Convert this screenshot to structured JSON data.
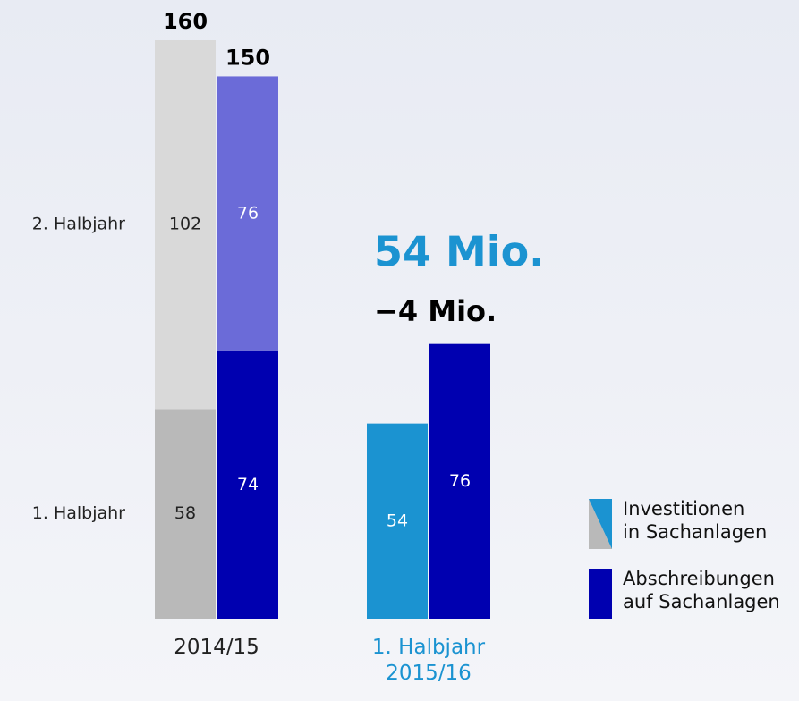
{
  "chart_data": {
    "type": "stacked-bar",
    "ylim": [
      0,
      160
    ],
    "stack_labels": [
      "1. Halbjahr",
      "2. Halbjahr"
    ],
    "groups": [
      {
        "label": "2014/15",
        "label_color": "#222222",
        "bars": [
          {
            "values": [
              58,
              102
            ],
            "colors": [
              "#b9b9b9",
              "#d9d9d9"
            ],
            "label_color": "#222222",
            "total": 160
          },
          {
            "values": [
              74,
              76
            ],
            "colors": [
              "#0000b0",
              "#6b6bd8"
            ],
            "label_color": "#ffffff",
            "total": 150
          }
        ]
      },
      {
        "label": "1. Halbjahr\n2015/16",
        "label_color": "#1b93d1",
        "bars": [
          {
            "values": [
              54
            ],
            "colors": [
              "#1b93d1"
            ],
            "label_color": "#ffffff"
          },
          {
            "values": [
              76
            ],
            "colors": [
              "#0000b0"
            ],
            "label_color": "#ffffff"
          }
        ]
      }
    ],
    "annotations": [
      {
        "text": "54 Mio.",
        "color": "#1b93d1"
      },
      {
        "text": "−4 Mio.",
        "color": "#000000"
      }
    ],
    "legend": [
      {
        "name": "Investitionen\nin Sachanlagen",
        "colors": [
          "#b9b9b9",
          "#1b93d1"
        ]
      },
      {
        "name": "Abschreibungen\nauf Sachanlagen",
        "colors": [
          "#0000b0"
        ]
      }
    ]
  }
}
